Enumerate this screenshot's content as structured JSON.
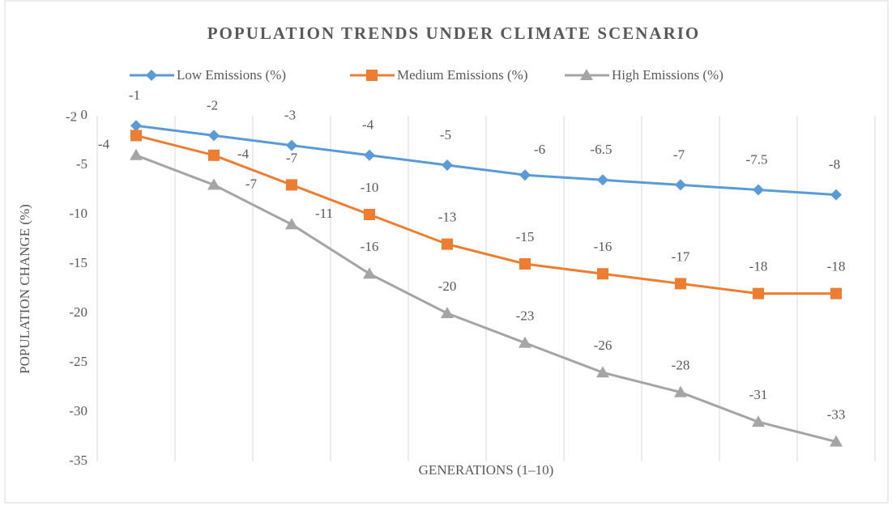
{
  "chart_data": {
    "type": "line",
    "title": "POPULATION TRENDS UNDER CLIMATE SCENARIO",
    "x_label": "GENERATIONS (1–10)",
    "y_label": "POPULATION CHANGE (%)",
    "categories": [
      null,
      null,
      null,
      null,
      null,
      null,
      null,
      null,
      null,
      null
    ],
    "series": [
      {
        "name": "Low Emissions (%)",
        "color": "#5b9bd5",
        "marker": "diamond",
        "values": [
          -1,
          -2,
          -3,
          -4,
          -5,
          -6,
          -6.5,
          -7,
          -7.5,
          -8
        ]
      },
      {
        "name": "Medium Emissions (%)",
        "color": "#ed7d31",
        "marker": "square",
        "values": [
          -2,
          -4,
          -7,
          -10,
          -13,
          -15,
          -16,
          -17,
          -18,
          -18
        ]
      },
      {
        "name": "High Emissions (%)",
        "color": "#a5a5a5",
        "marker": "triangle",
        "values": [
          -4,
          -7,
          -11,
          -16,
          -20,
          -23,
          -26,
          -28,
          -31,
          -33
        ]
      }
    ],
    "ylim": [
      -35,
      0
    ],
    "yticks": [
      0,
      -5,
      -10,
      -15,
      -20,
      -25,
      -30,
      -35
    ],
    "grid": "x",
    "legend": "top"
  }
}
